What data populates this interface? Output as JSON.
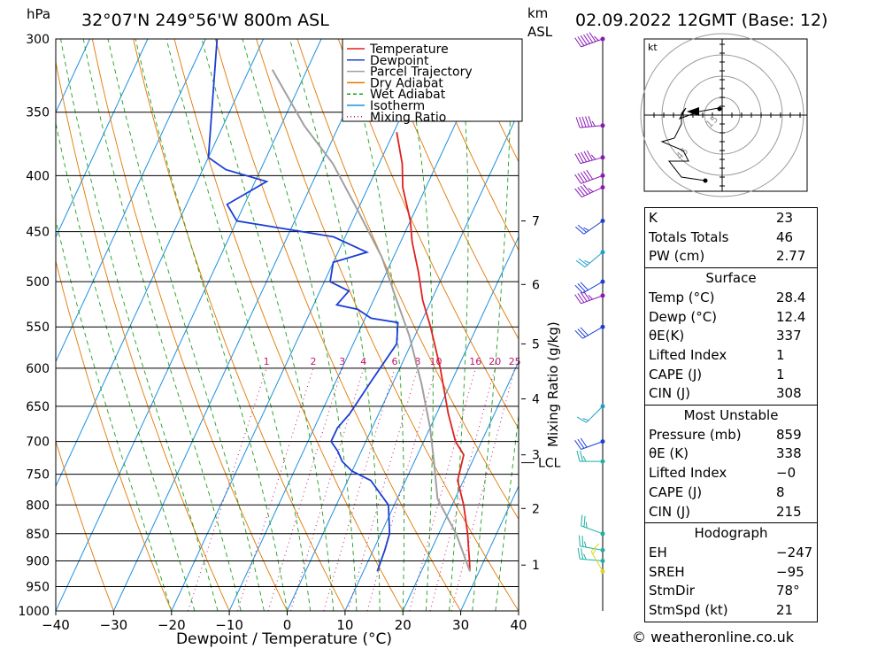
{
  "header": {
    "pressure_unit": "hPa",
    "location": "32°07'N  249°56'W  800m  ASL",
    "km_label": "km",
    "asl_label": "ASL",
    "date": "02.09.2022  12GMT  (Base: 12)"
  },
  "footer": {
    "credit": "© weatheronline.co.uk"
  },
  "legend": [
    {
      "label": "Temperature",
      "color": "#e0201e",
      "style": "solid"
    },
    {
      "label": "Dewpoint",
      "color": "#1b3fd6",
      "style": "solid"
    },
    {
      "label": "Parcel Trajectory",
      "color": "#a0a0a0",
      "style": "solid"
    },
    {
      "label": "Dry Adiabat",
      "color": "#e07800",
      "style": "solid"
    },
    {
      "label": "Wet Adiabat",
      "color": "#1ca01c",
      "style": "dashed"
    },
    {
      "label": "Isotherm",
      "color": "#1c90e0",
      "style": "solid"
    },
    {
      "label": "Mixing Ratio",
      "color": "#c0186e",
      "style": "dotted"
    }
  ],
  "chart_data": {
    "type": "line",
    "subtype": "skew-T log-p",
    "xlabel": "Dewpoint / Temperature (°C)",
    "ylabel": "hPa",
    "xlim": [
      -40,
      40
    ],
    "ylim": [
      1000,
      300
    ],
    "x_ticks": [
      "−40",
      "−30",
      "−20",
      "−10",
      "0",
      "10",
      "20",
      "30",
      "40"
    ],
    "pressure_levels": [
      300,
      350,
      400,
      450,
      500,
      550,
      600,
      650,
      700,
      750,
      800,
      850,
      900,
      950,
      1000
    ],
    "height_axis": {
      "label": "km ASL",
      "ticks": [
        {
          "km": "1",
          "p": 908
        },
        {
          "km": "2",
          "p": 806
        },
        {
          "km": "3",
          "p": 720
        },
        {
          "km": "4",
          "p": 640
        },
        {
          "km": "5",
          "p": 570
        },
        {
          "km": "6",
          "p": 503
        },
        {
          "km": "7",
          "p": 440
        }
      ],
      "lcl_label": "LCL",
      "lcl_p": 732
    },
    "mixing_ratio_axis_label": "Mixing Ratio (g/kg)",
    "mixing_ratio_labels": [
      "1",
      "2",
      "3",
      "4",
      "6",
      "8",
      "10",
      "16",
      "20",
      "25"
    ],
    "mixing_ratio_values": [
      1,
      2,
      3,
      4,
      6,
      8,
      10,
      16,
      20,
      25
    ],
    "series": [
      {
        "name": "Temperature",
        "color": "#e0201e",
        "points": [
          [
            28.4,
            920
          ],
          [
            27.5,
            900
          ],
          [
            26.5,
            880
          ],
          [
            25.0,
            850
          ],
          [
            22.0,
            800
          ],
          [
            19.0,
            760
          ],
          [
            18.5,
            740
          ],
          [
            18.0,
            720
          ],
          [
            15.5,
            700
          ],
          [
            12.0,
            660
          ],
          [
            7.0,
            600
          ],
          [
            2.0,
            550
          ],
          [
            -1.5,
            520
          ],
          [
            -4.5,
            490
          ],
          [
            -8.0,
            460
          ],
          [
            -10.0,
            440
          ],
          [
            -14.0,
            410
          ],
          [
            -16.0,
            390
          ],
          [
            -19.5,
            365
          ]
        ]
      },
      {
        "name": "Dewpoint",
        "color": "#1b3fd6",
        "points": [
          [
            12.4,
            920
          ],
          [
            12.0,
            880
          ],
          [
            11.5,
            850
          ],
          [
            9.0,
            800
          ],
          [
            4.0,
            760
          ],
          [
            0.0,
            745
          ],
          [
            -2.5,
            730
          ],
          [
            -4.0,
            715
          ],
          [
            -6.0,
            700
          ],
          [
            -6.0,
            680
          ],
          [
            -5.0,
            660
          ],
          [
            -4.0,
            620
          ],
          [
            -2.5,
            570
          ],
          [
            -4.0,
            545
          ],
          [
            -9.0,
            540
          ],
          [
            -12.0,
            530
          ],
          [
            -16.0,
            525
          ],
          [
            -15.0,
            510
          ],
          [
            -19.0,
            500
          ],
          [
            -20.0,
            480
          ],
          [
            -15.0,
            470
          ],
          [
            -22.0,
            455
          ],
          [
            -40.0,
            440
          ],
          [
            -43.0,
            425
          ],
          [
            -38.0,
            405
          ],
          [
            -46.0,
            395
          ],
          [
            -50.0,
            385
          ],
          [
            -58.0,
            300
          ]
        ]
      },
      {
        "name": "Parcel Trajectory",
        "color": "#a0a0a0",
        "points": [
          [
            28.4,
            920
          ],
          [
            23.0,
            850
          ],
          [
            17.0,
            790
          ],
          [
            13.5,
            732
          ],
          [
            10.0,
            680
          ],
          [
            5.0,
            620
          ],
          [
            -1.0,
            560
          ],
          [
            -6.0,
            520
          ],
          [
            -12.0,
            475
          ],
          [
            -20.0,
            430
          ],
          [
            -28.0,
            390
          ],
          [
            -36.0,
            360
          ],
          [
            -46.0,
            320
          ]
        ]
      }
    ],
    "hodograph": {
      "unit": "kt",
      "ring_labels": [
        "15",
        "45"
      ]
    },
    "indices": {
      "K": "23",
      "Totals Totals": "46",
      "PW (cm)": "2.77"
    },
    "surface": {
      "Temp (°C)": "28.4",
      "Dewp (°C)": "12.4",
      "θE(K)": "337",
      "Lifted Index": "1",
      "CAPE (J)": "1",
      "CIN (J)": "308"
    },
    "most_unstable": {
      "Pressure (mb)": "859",
      "θE (K)": "338",
      "Lifted Index": "−0",
      "CAPE (J)": "8",
      "CIN (J)": "215"
    },
    "hodograph_params": {
      "EH": "−247",
      "SREH": "−95",
      "StmDir": "78°",
      "StmSpd (kt)": "21"
    }
  },
  "table": {
    "rows_top": [
      {
        "k": "K",
        "v": "23"
      },
      {
        "k": "Totals Totals",
        "v": "46"
      },
      {
        "k": "PW (cm)",
        "v": "2.77"
      }
    ],
    "surface_title": "Surface",
    "rows_surface": [
      {
        "k": "Temp (°C)",
        "v": "28.4"
      },
      {
        "k": "Dewp (°C)",
        "v": "12.4"
      },
      {
        "k": "θE(K)",
        "v": "337"
      },
      {
        "k": "Lifted Index",
        "v": "1"
      },
      {
        "k": "CAPE (J)",
        "v": "1"
      },
      {
        "k": "CIN (J)",
        "v": "308"
      }
    ],
    "mu_title": "Most Unstable",
    "rows_mu": [
      {
        "k": "Pressure (mb)",
        "v": "859"
      },
      {
        "k": "θE (K)",
        "v": "338"
      },
      {
        "k": "Lifted Index",
        "v": "−0"
      },
      {
        "k": "CAPE (J)",
        "v": "8"
      },
      {
        "k": "CIN (J)",
        "v": "215"
      }
    ],
    "hodo_title": "Hodograph",
    "rows_hodo": [
      {
        "k": "EH",
        "v": "−247"
      },
      {
        "k": "SREH",
        "v": "−95"
      },
      {
        "k": "StmDir",
        "v": "78°"
      },
      {
        "k": "StmSpd (kt)",
        "v": "21"
      }
    ]
  },
  "wind_barbs": [
    {
      "p": 300,
      "dir": 250,
      "spd": 65,
      "color": "#8a18b8"
    },
    {
      "p": 360,
      "dir": 265,
      "spd": 55,
      "color": "#8a18b8"
    },
    {
      "p": 385,
      "dir": 255,
      "spd": 55,
      "color": "#8a18b8"
    },
    {
      "p": 400,
      "dir": 250,
      "spd": 50,
      "color": "#8a18b8"
    },
    {
      "p": 410,
      "dir": 245,
      "spd": 45,
      "color": "#8a18b8"
    },
    {
      "p": 440,
      "dir": 235,
      "spd": 25,
      "color": "#1b3fd6"
    },
    {
      "p": 470,
      "dir": 230,
      "spd": 25,
      "color": "#1ca0c8"
    },
    {
      "p": 500,
      "dir": 240,
      "spd": 30,
      "color": "#1b3fd6"
    },
    {
      "p": 515,
      "dir": 250,
      "spd": 45,
      "color": "#8a18b8"
    },
    {
      "p": 550,
      "dir": 240,
      "spd": 30,
      "color": "#1b3fd6"
    },
    {
      "p": 650,
      "dir": 225,
      "spd": 15,
      "color": "#1ca0c8"
    },
    {
      "p": 700,
      "dir": 250,
      "spd": 30,
      "color": "#1b3fd6"
    },
    {
      "p": 730,
      "dir": 270,
      "spd": 25,
      "color": "#1cb0a0"
    },
    {
      "p": 850,
      "dir": 290,
      "spd": 25,
      "color": "#1cb0a0"
    },
    {
      "p": 880,
      "dir": 280,
      "spd": 25,
      "color": "#1cb0a0"
    },
    {
      "p": 900,
      "dir": 275,
      "spd": 25,
      "color": "#1cb0a0"
    },
    {
      "p": 920,
      "dir": 330,
      "spd": 15,
      "color": "#d8d820"
    }
  ]
}
